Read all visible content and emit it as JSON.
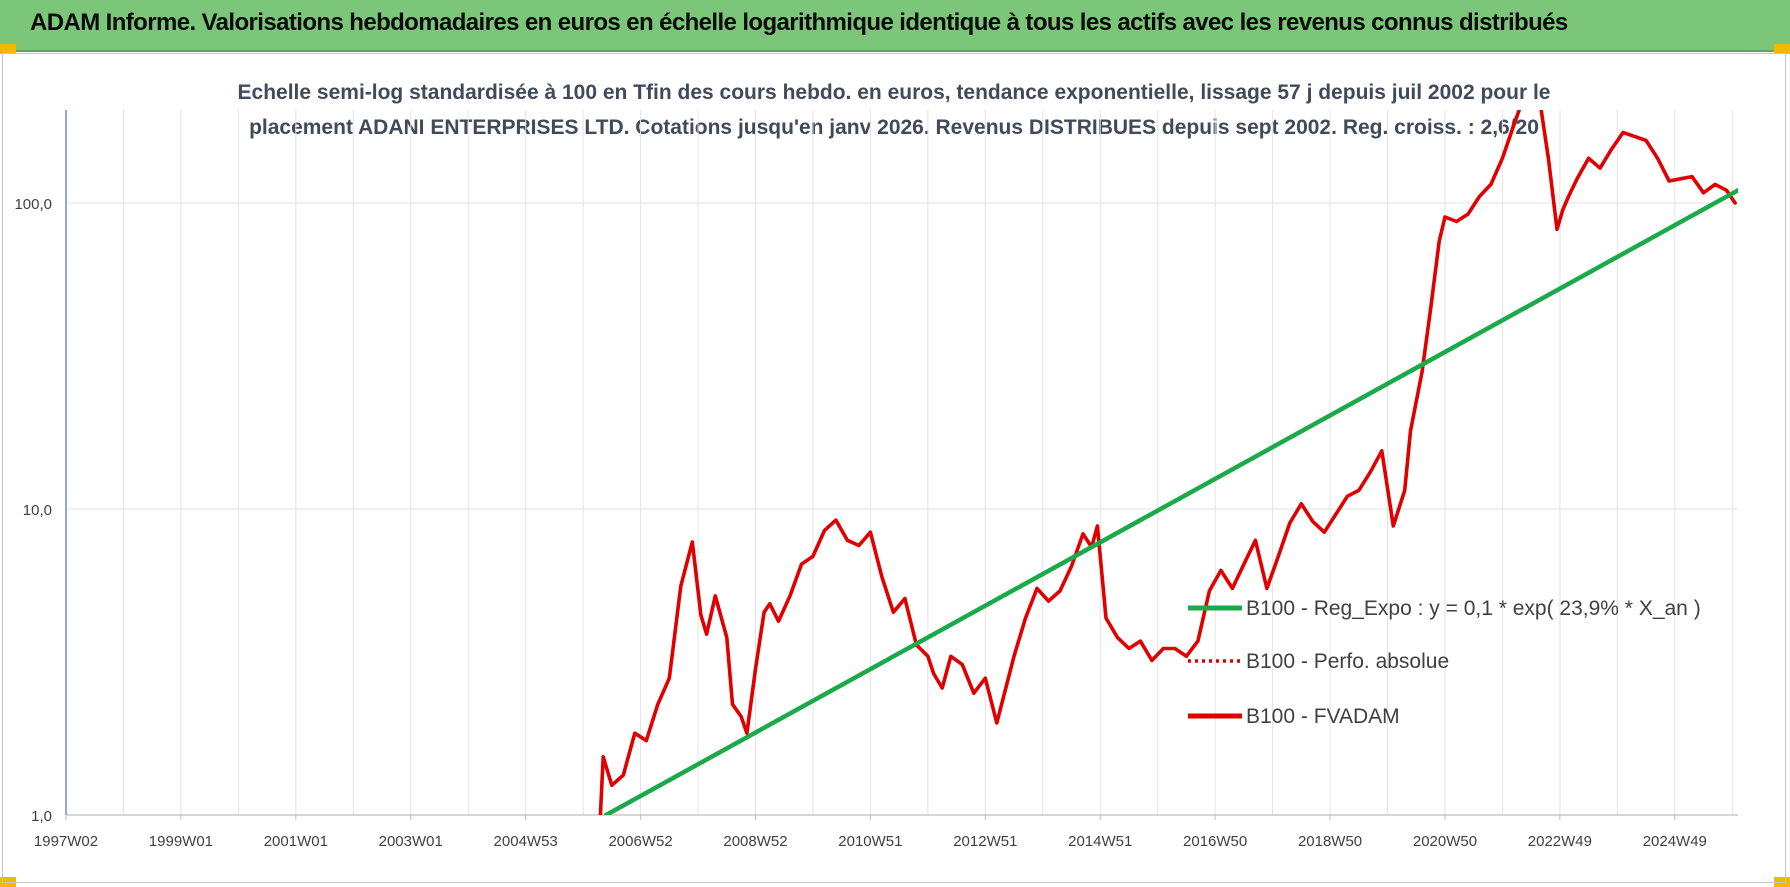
{
  "header": {
    "title": "ADAM Informe. Valorisations hebdomadaires en euros en échelle logarithmique identique à tous les actifs avec les revenus connus distribués"
  },
  "chart_data": {
    "type": "line",
    "title_line1": "Echelle semi-log standardisée à 100 en Tfin des cours hebdo. en euros, tendance exponentielle, lissage 57 j depuis juil 2002 pour le",
    "title_line2": "placement ADANI ENTERPRISES LTD. Cotations jusqu'en janv 2026. Revenus DISTRIBUES depuis sept 2002. Reg. croiss. : 2,6/20",
    "y_scale": "log",
    "ylim": [
      1,
      200
    ],
    "xlim": [
      1997.0,
      2026.1
    ],
    "y_ticks": [
      {
        "value": 1,
        "label": "1,0"
      },
      {
        "value": 10,
        "label": "10,0"
      },
      {
        "value": 100,
        "label": "100,0"
      }
    ],
    "x_ticks": [
      {
        "value": 1997.0,
        "label": "1997W02"
      },
      {
        "value": 1999.0,
        "label": "1999W01"
      },
      {
        "value": 2001.0,
        "label": "2001W01"
      },
      {
        "value": 2003.0,
        "label": "2003W01"
      },
      {
        "value": 2005.0,
        "label": "2004W53"
      },
      {
        "value": 2007.0,
        "label": "2006W52"
      },
      {
        "value": 2009.0,
        "label": "2008W52"
      },
      {
        "value": 2011.0,
        "label": "2010W51"
      },
      {
        "value": 2013.0,
        "label": "2012W51"
      },
      {
        "value": 2015.0,
        "label": "2014W51"
      },
      {
        "value": 2017.0,
        "label": "2016W50"
      },
      {
        "value": 2019.0,
        "label": "2018W50"
      },
      {
        "value": 2021.0,
        "label": "2020W50"
      },
      {
        "value": 2023.0,
        "label": "2022W49"
      },
      {
        "value": 2025.0,
        "label": "2024W49"
      }
    ],
    "grid": true,
    "legend_position": "center-right",
    "series": [
      {
        "name": "B100 - Reg_Expo : y = 0,1 * exp( 23,9% * X_an )",
        "color": "#1aaa4a",
        "style": "solid",
        "x": [
          2006.4,
          2026.1
        ],
        "y": [
          1.0,
          110
        ]
      },
      {
        "name": "B100 - Perfo. absolue",
        "color": "#e00000",
        "style": "dotted",
        "x": [],
        "y": []
      },
      {
        "name": "B100 - FVADAM",
        "color": "#e00000",
        "style": "solid",
        "x": [
          2006.3,
          2006.35,
          2006.5,
          2006.7,
          2006.9,
          2007.1,
          2007.3,
          2007.5,
          2007.7,
          2007.9,
          2008.05,
          2008.15,
          2008.3,
          2008.5,
          2008.6,
          2008.75,
          2008.85,
          2009.0,
          2009.15,
          2009.25,
          2009.4,
          2009.6,
          2009.8,
          2010.0,
          2010.2,
          2010.4,
          2010.6,
          2010.8,
          2011.0,
          2011.2,
          2011.4,
          2011.6,
          2011.8,
          2012.0,
          2012.1,
          2012.25,
          2012.4,
          2012.6,
          2012.8,
          2013.0,
          2013.2,
          2013.5,
          2013.7,
          2013.9,
          2014.1,
          2014.3,
          2014.5,
          2014.7,
          2014.85,
          2014.95,
          2015.1,
          2015.3,
          2015.5,
          2015.7,
          2015.9,
          2016.1,
          2016.3,
          2016.5,
          2016.7,
          2016.9,
          2017.1,
          2017.3,
          2017.5,
          2017.7,
          2017.9,
          2018.1,
          2018.3,
          2018.5,
          2018.7,
          2018.9,
          2019.1,
          2019.3,
          2019.5,
          2019.7,
          2019.9,
          2020.1,
          2020.3,
          2020.4,
          2020.6,
          2020.75,
          2020.9,
          2021.0,
          2021.2,
          2021.4,
          2021.6,
          2021.8,
          2022.0,
          2022.2,
          2022.4,
          2022.6,
          2022.8,
          2022.95,
          2023.05,
          2023.15,
          2023.3,
          2023.5,
          2023.7,
          2023.9,
          2024.1,
          2024.3,
          2024.5,
          2024.7,
          2024.9,
          2025.1,
          2025.3,
          2025.5,
          2025.7,
          2025.9,
          2026.05
        ],
        "y": [
          1.0,
          1.55,
          1.25,
          1.35,
          1.85,
          1.75,
          2.3,
          2.8,
          5.6,
          7.8,
          4.5,
          3.9,
          5.2,
          3.8,
          2.3,
          2.1,
          1.85,
          3.0,
          4.6,
          4.9,
          4.3,
          5.2,
          6.6,
          7.0,
          8.5,
          9.2,
          7.9,
          7.6,
          8.4,
          6.0,
          4.6,
          5.1,
          3.6,
          3.3,
          2.9,
          2.6,
          3.3,
          3.1,
          2.5,
          2.8,
          2.0,
          3.3,
          4.4,
          5.5,
          5.0,
          5.4,
          6.5,
          8.3,
          7.5,
          8.8,
          4.4,
          3.8,
          3.5,
          3.7,
          3.2,
          3.5,
          3.5,
          3.3,
          3.7,
          5.4,
          6.3,
          5.5,
          6.6,
          7.9,
          5.5,
          7.0,
          9.0,
          10.4,
          9.1,
          8.4,
          9.6,
          11.0,
          11.5,
          13.2,
          15.5,
          8.8,
          11.5,
          18.0,
          28.0,
          45.0,
          75.0,
          90.0,
          87.0,
          92.0,
          105.0,
          115.0,
          140.0,
          180.0,
          230.0,
          250.0,
          140.0,
          82.0,
          95.0,
          105.0,
          120.0,
          140.0,
          130.0,
          150.0,
          170.0,
          165.0,
          160.0,
          140.0,
          118.0,
          120.0,
          122.0,
          108.0,
          115.0,
          110.0,
          100.0
        ]
      }
    ]
  }
}
